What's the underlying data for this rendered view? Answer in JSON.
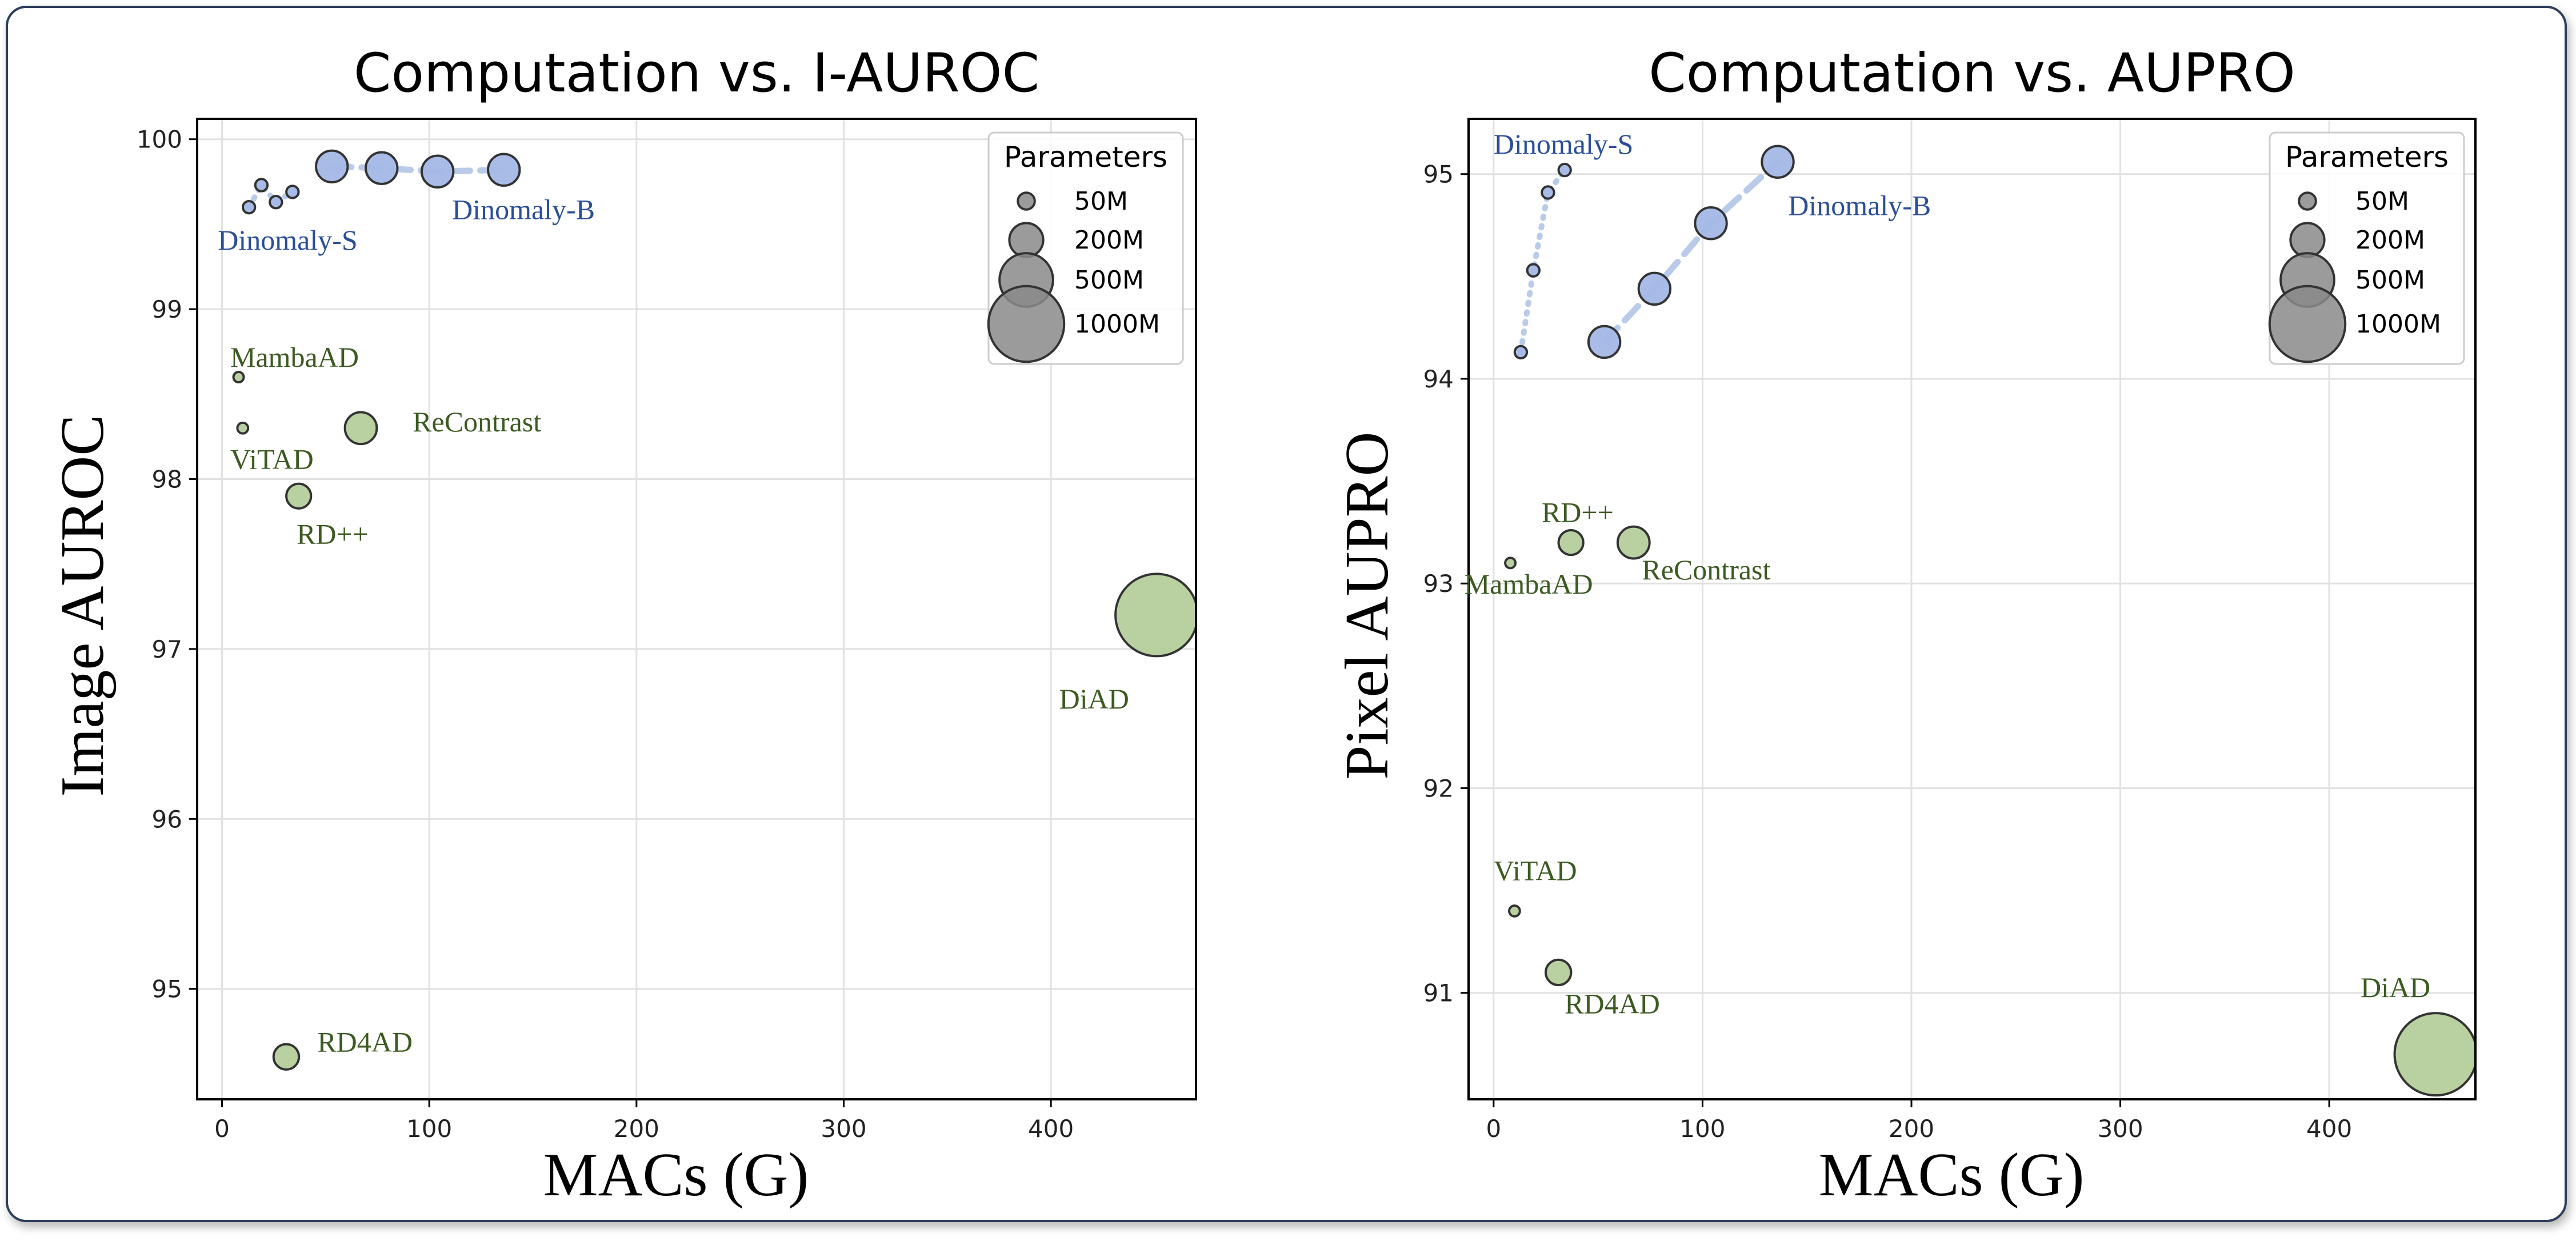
{
  "colors": {
    "dinomaly": "#a3b8e6",
    "dinomaly_line": "#b9cbe9",
    "dinomaly_text": "#2b4f96",
    "baseline": "#b5cf9c",
    "baseline_text": "#3c5a22",
    "marker_edge": "#333333",
    "legend_marker": "#8a8a8a"
  },
  "chart_data": [
    {
      "type": "scatter",
      "title": "Computation vs. I-AUROC",
      "xlabel": "MACs (G)",
      "ylabel": "Image AUROC",
      "xlim": [
        -12,
        470
      ],
      "ylim": [
        94.35,
        100.12
      ],
      "xticks": [
        "0",
        "100",
        "200",
        "300",
        "400"
      ],
      "yticks": [
        "95",
        "96",
        "97",
        "98",
        "99",
        "100"
      ],
      "grid": true,
      "legend": {
        "title": "Parameters",
        "location": "top-right",
        "entries": [
          {
            "label": "50M",
            "params": 50
          },
          {
            "label": "200M",
            "params": 200
          },
          {
            "label": "500M",
            "params": 500
          },
          {
            "label": "1000M",
            "params": 1000
          }
        ]
      },
      "series": [
        {
          "group": "dinomaly",
          "line": "dotted",
          "points": [
            {
              "x": 13,
              "y": 99.6,
              "params": 22
            },
            {
              "x": 19,
              "y": 99.73,
              "params": 22
            },
            {
              "x": 26,
              "y": 99.63,
              "params": 22
            },
            {
              "x": 34,
              "y": 99.69,
              "params": 22
            }
          ]
        },
        {
          "group": "dinomaly",
          "line": "dashed",
          "points": [
            {
              "x": 53,
              "y": 99.84,
              "params": 148
            },
            {
              "x": 77,
              "y": 99.83,
              "params": 148
            },
            {
              "x": 104,
              "y": 99.81,
              "params": 148
            },
            {
              "x": 136,
              "y": 99.82,
              "params": 148
            }
          ]
        },
        {
          "group": "baseline",
          "line": "none",
          "points": [
            {
              "x": 8,
              "y": 98.6,
              "params": 9
            },
            {
              "x": 10,
              "y": 98.3,
              "params": 17
            },
            {
              "x": 67,
              "y": 98.3,
              "params": 150
            },
            {
              "x": 37,
              "y": 97.9,
              "params": 90
            },
            {
              "x": 451,
              "y": 97.2,
              "params": 1000
            },
            {
              "x": 31,
              "y": 94.6,
              "params": 95
            }
          ]
        }
      ],
      "labels": [
        {
          "text": "Dinomaly-S",
          "x": -2,
          "y": 99.35,
          "group": "dinomaly"
        },
        {
          "text": "Dinomaly-B",
          "x": 111,
          "y": 99.53,
          "group": "dinomaly"
        },
        {
          "text": "MambaAD",
          "x": 4,
          "y": 98.66,
          "group": "baseline"
        },
        {
          "text": "ViTAD",
          "x": 4,
          "y": 98.06,
          "group": "baseline"
        },
        {
          "text": "ReContrast",
          "x": 92,
          "y": 98.28,
          "group": "baseline"
        },
        {
          "text": "RD++",
          "x": 36,
          "y": 97.62,
          "group": "baseline"
        },
        {
          "text": "DiAD",
          "x": 404,
          "y": 96.65,
          "group": "baseline"
        },
        {
          "text": "RD4AD",
          "x": 46,
          "y": 94.63,
          "group": "baseline"
        }
      ]
    },
    {
      "type": "scatter",
      "title": "Computation vs. AUPRO",
      "xlabel": "MACs (G)",
      "ylabel": "Pixel AUPRO",
      "xlim": [
        -12,
        470
      ],
      "ylim": [
        90.48,
        95.27
      ],
      "xticks": [
        "0",
        "100",
        "200",
        "300",
        "400"
      ],
      "yticks": [
        "91",
        "92",
        "93",
        "94",
        "95"
      ],
      "grid": true,
      "legend": {
        "title": "Parameters",
        "location": "top-right",
        "entries": [
          {
            "label": "50M",
            "params": 50
          },
          {
            "label": "200M",
            "params": 200
          },
          {
            "label": "500M",
            "params": 500
          },
          {
            "label": "1000M",
            "params": 1000
          }
        ]
      },
      "series": [
        {
          "group": "dinomaly",
          "line": "dotted",
          "points": [
            {
              "x": 13,
              "y": 94.13,
              "params": 22
            },
            {
              "x": 19,
              "y": 94.53,
              "params": 22
            },
            {
              "x": 26,
              "y": 94.91,
              "params": 22
            },
            {
              "x": 34,
              "y": 95.02,
              "params": 22
            }
          ]
        },
        {
          "group": "dinomaly",
          "line": "dashed",
          "points": [
            {
              "x": 53,
              "y": 94.18,
              "params": 148
            },
            {
              "x": 77,
              "y": 94.44,
              "params": 148
            },
            {
              "x": 104,
              "y": 94.76,
              "params": 148
            },
            {
              "x": 136,
              "y": 95.06,
              "params": 148
            }
          ]
        },
        {
          "group": "baseline",
          "line": "none",
          "points": [
            {
              "x": 8,
              "y": 93.1,
              "params": 9
            },
            {
              "x": 37,
              "y": 93.2,
              "params": 90
            },
            {
              "x": 67,
              "y": 93.2,
              "params": 150
            },
            {
              "x": 10,
              "y": 91.4,
              "params": 17
            },
            {
              "x": 31,
              "y": 91.1,
              "params": 95
            },
            {
              "x": 451,
              "y": 90.7,
              "params": 1000
            }
          ]
        }
      ],
      "labels": [
        {
          "text": "Dinomaly-S",
          "x": 0,
          "y": 95.1,
          "group": "dinomaly"
        },
        {
          "text": "Dinomaly-B",
          "x": 141,
          "y": 94.8,
          "group": "dinomaly"
        },
        {
          "text": "RD++",
          "x": 23,
          "y": 93.3,
          "group": "baseline"
        },
        {
          "text": "MambaAD",
          "x": -14,
          "y": 92.95,
          "group": "baseline"
        },
        {
          "text": "ReContrast",
          "x": 71,
          "y": 93.02,
          "group": "baseline"
        },
        {
          "text": "ViTAD",
          "x": 0,
          "y": 91.55,
          "group": "baseline"
        },
        {
          "text": "RD4AD",
          "x": 34,
          "y": 90.9,
          "group": "baseline"
        },
        {
          "text": "DiAD",
          "x": 415,
          "y": 90.98,
          "group": "baseline"
        }
      ]
    }
  ]
}
